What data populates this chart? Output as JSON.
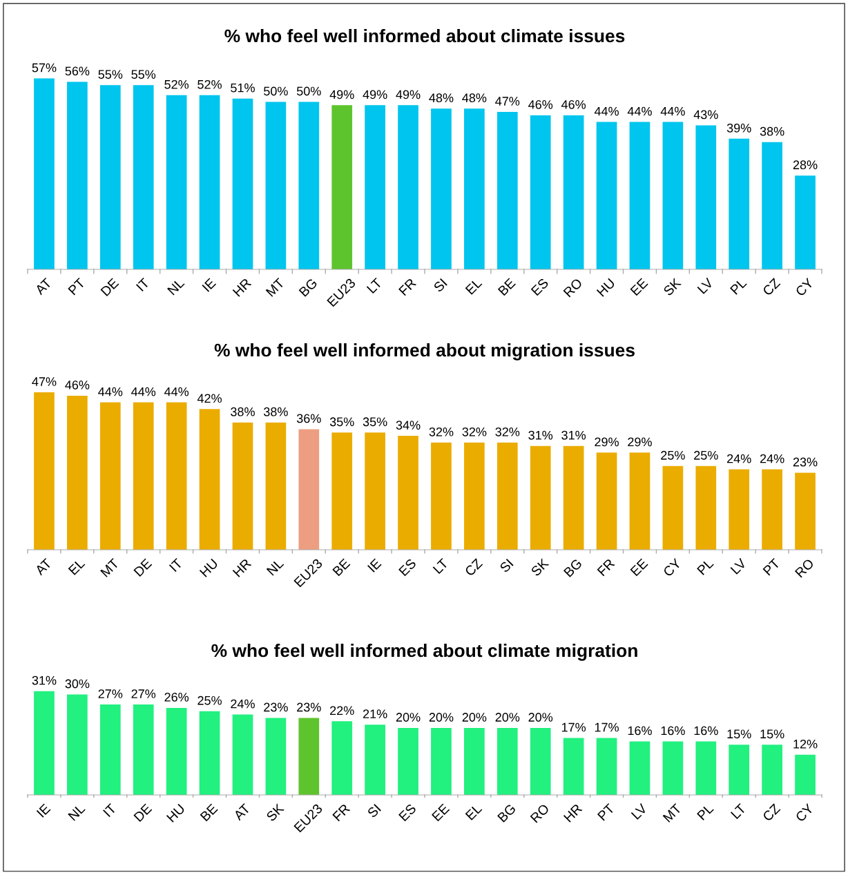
{
  "chart_data": [
    {
      "type": "bar",
      "title": "% who feel well informed about climate issues",
      "categories": [
        "AT",
        "PT",
        "DE",
        "IT",
        "NL",
        "IE",
        "HR",
        "MT",
        "BG",
        "EU23",
        "LT",
        "FR",
        "SI",
        "EL",
        "BE",
        "ES",
        "RO",
        "HU",
        "EE",
        "SK",
        "LV",
        "PL",
        "CZ",
        "CY"
      ],
      "values": [
        57,
        56,
        55,
        55,
        52,
        52,
        51,
        50,
        50,
        49,
        49,
        49,
        48,
        48,
        47,
        46,
        46,
        44,
        44,
        44,
        43,
        39,
        38,
        28
      ],
      "value_labels": [
        "57%",
        "56%",
        "55%",
        "55%",
        "52%",
        "52%",
        "51%",
        "50%",
        "50%",
        "49%",
        "49%",
        "49%",
        "48%",
        "48%",
        "47%",
        "46%",
        "46%",
        "44%",
        "44%",
        "44%",
        "43%",
        "39%",
        "38%",
        "28%"
      ],
      "colors": [
        "#00c5ee",
        "#00c5ee",
        "#00c5ee",
        "#00c5ee",
        "#00c5ee",
        "#00c5ee",
        "#00c5ee",
        "#00c5ee",
        "#00c5ee",
        "#5ec42e",
        "#00c5ee",
        "#00c5ee",
        "#00c5ee",
        "#00c5ee",
        "#00c5ee",
        "#00c5ee",
        "#00c5ee",
        "#00c5ee",
        "#00c5ee",
        "#00c5ee",
        "#00c5ee",
        "#00c5ee",
        "#00c5ee",
        "#00c5ee"
      ],
      "grid": false,
      "legend": false
    },
    {
      "type": "bar",
      "title": "% who feel well informed about migration issues",
      "categories": [
        "AT",
        "EL",
        "MT",
        "DE",
        "IT",
        "HU",
        "HR",
        "NL",
        "EU23",
        "BE",
        "IE",
        "ES",
        "LT",
        "CZ",
        "SI",
        "SK",
        "BG",
        "FR",
        "EE",
        "CY",
        "PL",
        "LV",
        "PT",
        "RO"
      ],
      "values": [
        47,
        46,
        44,
        44,
        44,
        42,
        38,
        38,
        36,
        35,
        35,
        34,
        32,
        32,
        32,
        31,
        31,
        29,
        29,
        25,
        25,
        24,
        24,
        23
      ],
      "value_labels": [
        "47%",
        "46%",
        "44%",
        "44%",
        "44%",
        "42%",
        "38%",
        "38%",
        "36%",
        "35%",
        "35%",
        "34%",
        "32%",
        "32%",
        "32%",
        "31%",
        "31%",
        "29%",
        "29%",
        "25%",
        "25%",
        "24%",
        "24%",
        "23%"
      ],
      "colors": [
        "#ebac00",
        "#ebac00",
        "#ebac00",
        "#ebac00",
        "#ebac00",
        "#ebac00",
        "#ebac00",
        "#ebac00",
        "#ee9e80",
        "#ebac00",
        "#ebac00",
        "#ebac00",
        "#ebac00",
        "#ebac00",
        "#ebac00",
        "#ebac00",
        "#ebac00",
        "#ebac00",
        "#ebac00",
        "#ebac00",
        "#ebac00",
        "#ebac00",
        "#ebac00",
        "#ebac00"
      ],
      "grid": false,
      "legend": false
    },
    {
      "type": "bar",
      "title": "% who feel well informed about climate migration",
      "categories": [
        "IE",
        "NL",
        "IT",
        "DE",
        "HU",
        "BE",
        "AT",
        "SK",
        "EU23",
        "FR",
        "SI",
        "ES",
        "EE",
        "EL",
        "BG",
        "RO",
        "HR",
        "PT",
        "LV",
        "MT",
        "PL",
        "LT",
        "CZ",
        "CY"
      ],
      "values": [
        31,
        30,
        27,
        27,
        26,
        25,
        24,
        23,
        23,
        22,
        21,
        20,
        20,
        20,
        20,
        20,
        17,
        17,
        16,
        16,
        16,
        15,
        15,
        12
      ],
      "value_labels": [
        "31%",
        "30%",
        "27%",
        "27%",
        "26%",
        "25%",
        "24%",
        "23%",
        "23%",
        "22%",
        "21%",
        "20%",
        "20%",
        "20%",
        "20%",
        "20%",
        "17%",
        "17%",
        "16%",
        "16%",
        "16%",
        "15%",
        "15%",
        "12%"
      ],
      "colors": [
        "#22f07f",
        "#22f07f",
        "#22f07f",
        "#22f07f",
        "#22f07f",
        "#22f07f",
        "#22f07f",
        "#22f07f",
        "#5ec42e",
        "#22f07f",
        "#22f07f",
        "#22f07f",
        "#22f07f",
        "#22f07f",
        "#22f07f",
        "#22f07f",
        "#22f07f",
        "#22f07f",
        "#22f07f",
        "#22f07f",
        "#22f07f",
        "#22f07f",
        "#22f07f",
        "#22f07f"
      ],
      "grid": false,
      "legend": false
    }
  ]
}
